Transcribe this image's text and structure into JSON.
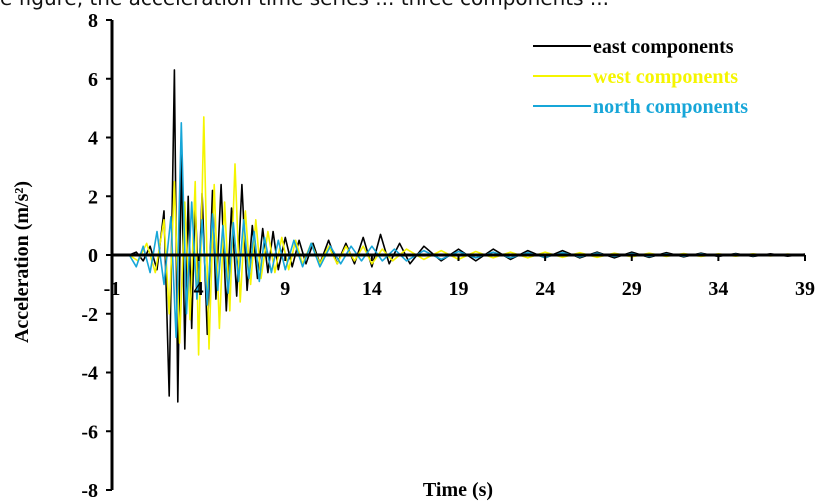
{
  "caption_fragment": "e figure, the acceleration time series ... three components ...",
  "chart_data": {
    "type": "line",
    "title": "",
    "xlabel": "Time (s)",
    "ylabel": "Acceleration (m/s²)",
    "xlim": [
      -1,
      39
    ],
    "ylim": [
      -8,
      8
    ],
    "x_ticks": [
      "-1",
      "4",
      "9",
      "14",
      "19",
      "24",
      "29",
      "34",
      "39"
    ],
    "y_ticks": [
      "-8",
      "-6",
      "-4",
      "-2",
      "0",
      "2",
      "4",
      "6",
      "8"
    ],
    "legend_position": "top-right",
    "grid": false,
    "series": [
      {
        "name": "east components",
        "color": "#000000",
        "x": [
          0,
          0.4,
          0.8,
          1.2,
          1.6,
          2.0,
          2.3,
          2.6,
          2.8,
          3.0,
          3.2,
          3.4,
          3.6,
          3.8,
          4.0,
          4.2,
          4.5,
          4.8,
          5.0,
          5.3,
          5.6,
          5.9,
          6.2,
          6.5,
          6.8,
          7.1,
          7.4,
          7.7,
          8.0,
          8.3,
          8.6,
          9.0,
          9.4,
          9.8,
          10.2,
          10.6,
          11.0,
          11.5,
          12.0,
          12.5,
          13.0,
          13.5,
          14.0,
          14.5,
          15.0,
          15.6,
          16.2,
          17.0,
          18.0,
          19.0,
          20.0,
          21.0,
          22.0,
          23.0,
          24.0,
          25.0,
          26.0,
          27.0,
          28.0,
          29.0,
          30.0,
          31.0,
          32.0,
          33.0,
          34.0,
          35.0,
          36.0,
          37.0,
          38.0,
          39.0
        ],
        "y": [
          0.0,
          0.1,
          -0.2,
          0.3,
          -0.5,
          1.5,
          -4.8,
          6.3,
          -5.0,
          3.5,
          -3.2,
          2.0,
          -2.5,
          1.8,
          -1.2,
          2.1,
          -2.7,
          2.2,
          -1.5,
          2.4,
          -1.9,
          1.6,
          -1.4,
          2.4,
          -1.2,
          1.0,
          -0.8,
          0.9,
          -0.6,
          0.8,
          -0.5,
          0.6,
          -0.4,
          0.5,
          -0.3,
          0.4,
          -0.3,
          0.5,
          -0.3,
          0.4,
          -0.3,
          0.6,
          -0.4,
          0.7,
          -0.3,
          0.4,
          -0.3,
          0.3,
          -0.2,
          0.2,
          -0.2,
          0.2,
          -0.15,
          0.15,
          -0.1,
          0.15,
          -0.1,
          0.1,
          -0.1,
          0.1,
          -0.08,
          0.08,
          -0.06,
          0.06,
          -0.05,
          0.05,
          -0.05,
          0.04,
          -0.04,
          0.03
        ]
      },
      {
        "name": "west components",
        "color": "#f5f500",
        "x": [
          0,
          0.5,
          1.0,
          1.5,
          2.0,
          2.3,
          2.6,
          2.9,
          3.2,
          3.5,
          3.8,
          4.0,
          4.3,
          4.6,
          4.9,
          5.2,
          5.5,
          5.8,
          6.1,
          6.4,
          6.7,
          7.0,
          7.3,
          7.6,
          8.0,
          8.4,
          8.8,
          9.2,
          9.6,
          10.0,
          10.5,
          11.0,
          11.5,
          12.0,
          12.5,
          13.0,
          13.5,
          14.0,
          14.6,
          15.2,
          16.0,
          17.0,
          18.0,
          19.0,
          20.0,
          21.0,
          22.0,
          23.0,
          24.0,
          25.0,
          26.0,
          27.0,
          28.0,
          29.0,
          30.0,
          31.0,
          32.0,
          33.0,
          34.0,
          35.0,
          36.0,
          37.0,
          38.0,
          39.0
        ],
        "y": [
          0.0,
          -0.2,
          0.4,
          -0.6,
          1.2,
          -2.0,
          2.5,
          -3.0,
          1.8,
          -2.2,
          2.5,
          -3.4,
          4.7,
          -3.2,
          2.4,
          -2.5,
          1.8,
          -1.9,
          3.1,
          -1.6,
          1.5,
          -1.0,
          1.2,
          -0.8,
          0.8,
          -0.6,
          0.6,
          -0.5,
          0.5,
          -0.3,
          0.4,
          -0.3,
          0.3,
          -0.3,
          0.3,
          -0.2,
          0.3,
          -0.3,
          0.2,
          -0.2,
          0.2,
          -0.15,
          0.15,
          -0.15,
          0.12,
          -0.1,
          0.1,
          -0.1,
          0.1,
          -0.08,
          0.08,
          -0.08,
          0.06,
          -0.06,
          0.06,
          -0.05,
          0.05,
          -0.05,
          0.04,
          -0.04,
          0.04,
          -0.03,
          0.03,
          -0.02
        ]
      },
      {
        "name": "north components",
        "color": "#17a6d8",
        "x": [
          0,
          0.4,
          0.8,
          1.2,
          1.6,
          2.0,
          2.4,
          2.7,
          3.0,
          3.3,
          3.6,
          3.9,
          4.2,
          4.5,
          4.8,
          5.1,
          5.4,
          5.7,
          6.0,
          6.3,
          6.6,
          6.9,
          7.2,
          7.5,
          7.8,
          8.2,
          8.6,
          9.0,
          9.5,
          10.0,
          10.5,
          11.0,
          11.6,
          12.2,
          12.8,
          13.4,
          14.0,
          14.6,
          15.3,
          16.0,
          17.0,
          18.0,
          19.0,
          20.0,
          21.0,
          22.0,
          23.0,
          24.0,
          25.0,
          26.0,
          27.0,
          28.0,
          29.0,
          30.0,
          31.0,
          32.0,
          33.0,
          34.0,
          35.0,
          36.0,
          37.0,
          38.0,
          39.0
        ],
        "y": [
          0.0,
          -0.4,
          0.3,
          -0.6,
          0.8,
          -1.0,
          1.3,
          -2.8,
          4.5,
          -2.0,
          1.8,
          -1.5,
          1.2,
          -1.7,
          1.4,
          -1.2,
          1.0,
          -1.3,
          1.1,
          -0.9,
          1.2,
          -0.8,
          0.8,
          -0.9,
          0.6,
          -0.6,
          0.5,
          -0.5,
          0.5,
          -0.4,
          0.4,
          -0.4,
          0.3,
          -0.3,
          0.3,
          -0.2,
          0.3,
          -0.2,
          0.2,
          -0.2,
          0.15,
          -0.15,
          0.12,
          -0.1,
          0.1,
          -0.1,
          0.08,
          -0.08,
          0.08,
          -0.06,
          0.06,
          -0.05,
          0.05,
          -0.05,
          0.04,
          -0.04,
          0.04,
          -0.03,
          0.03,
          -0.03,
          0.02,
          -0.02,
          0.02
        ]
      }
    ]
  }
}
